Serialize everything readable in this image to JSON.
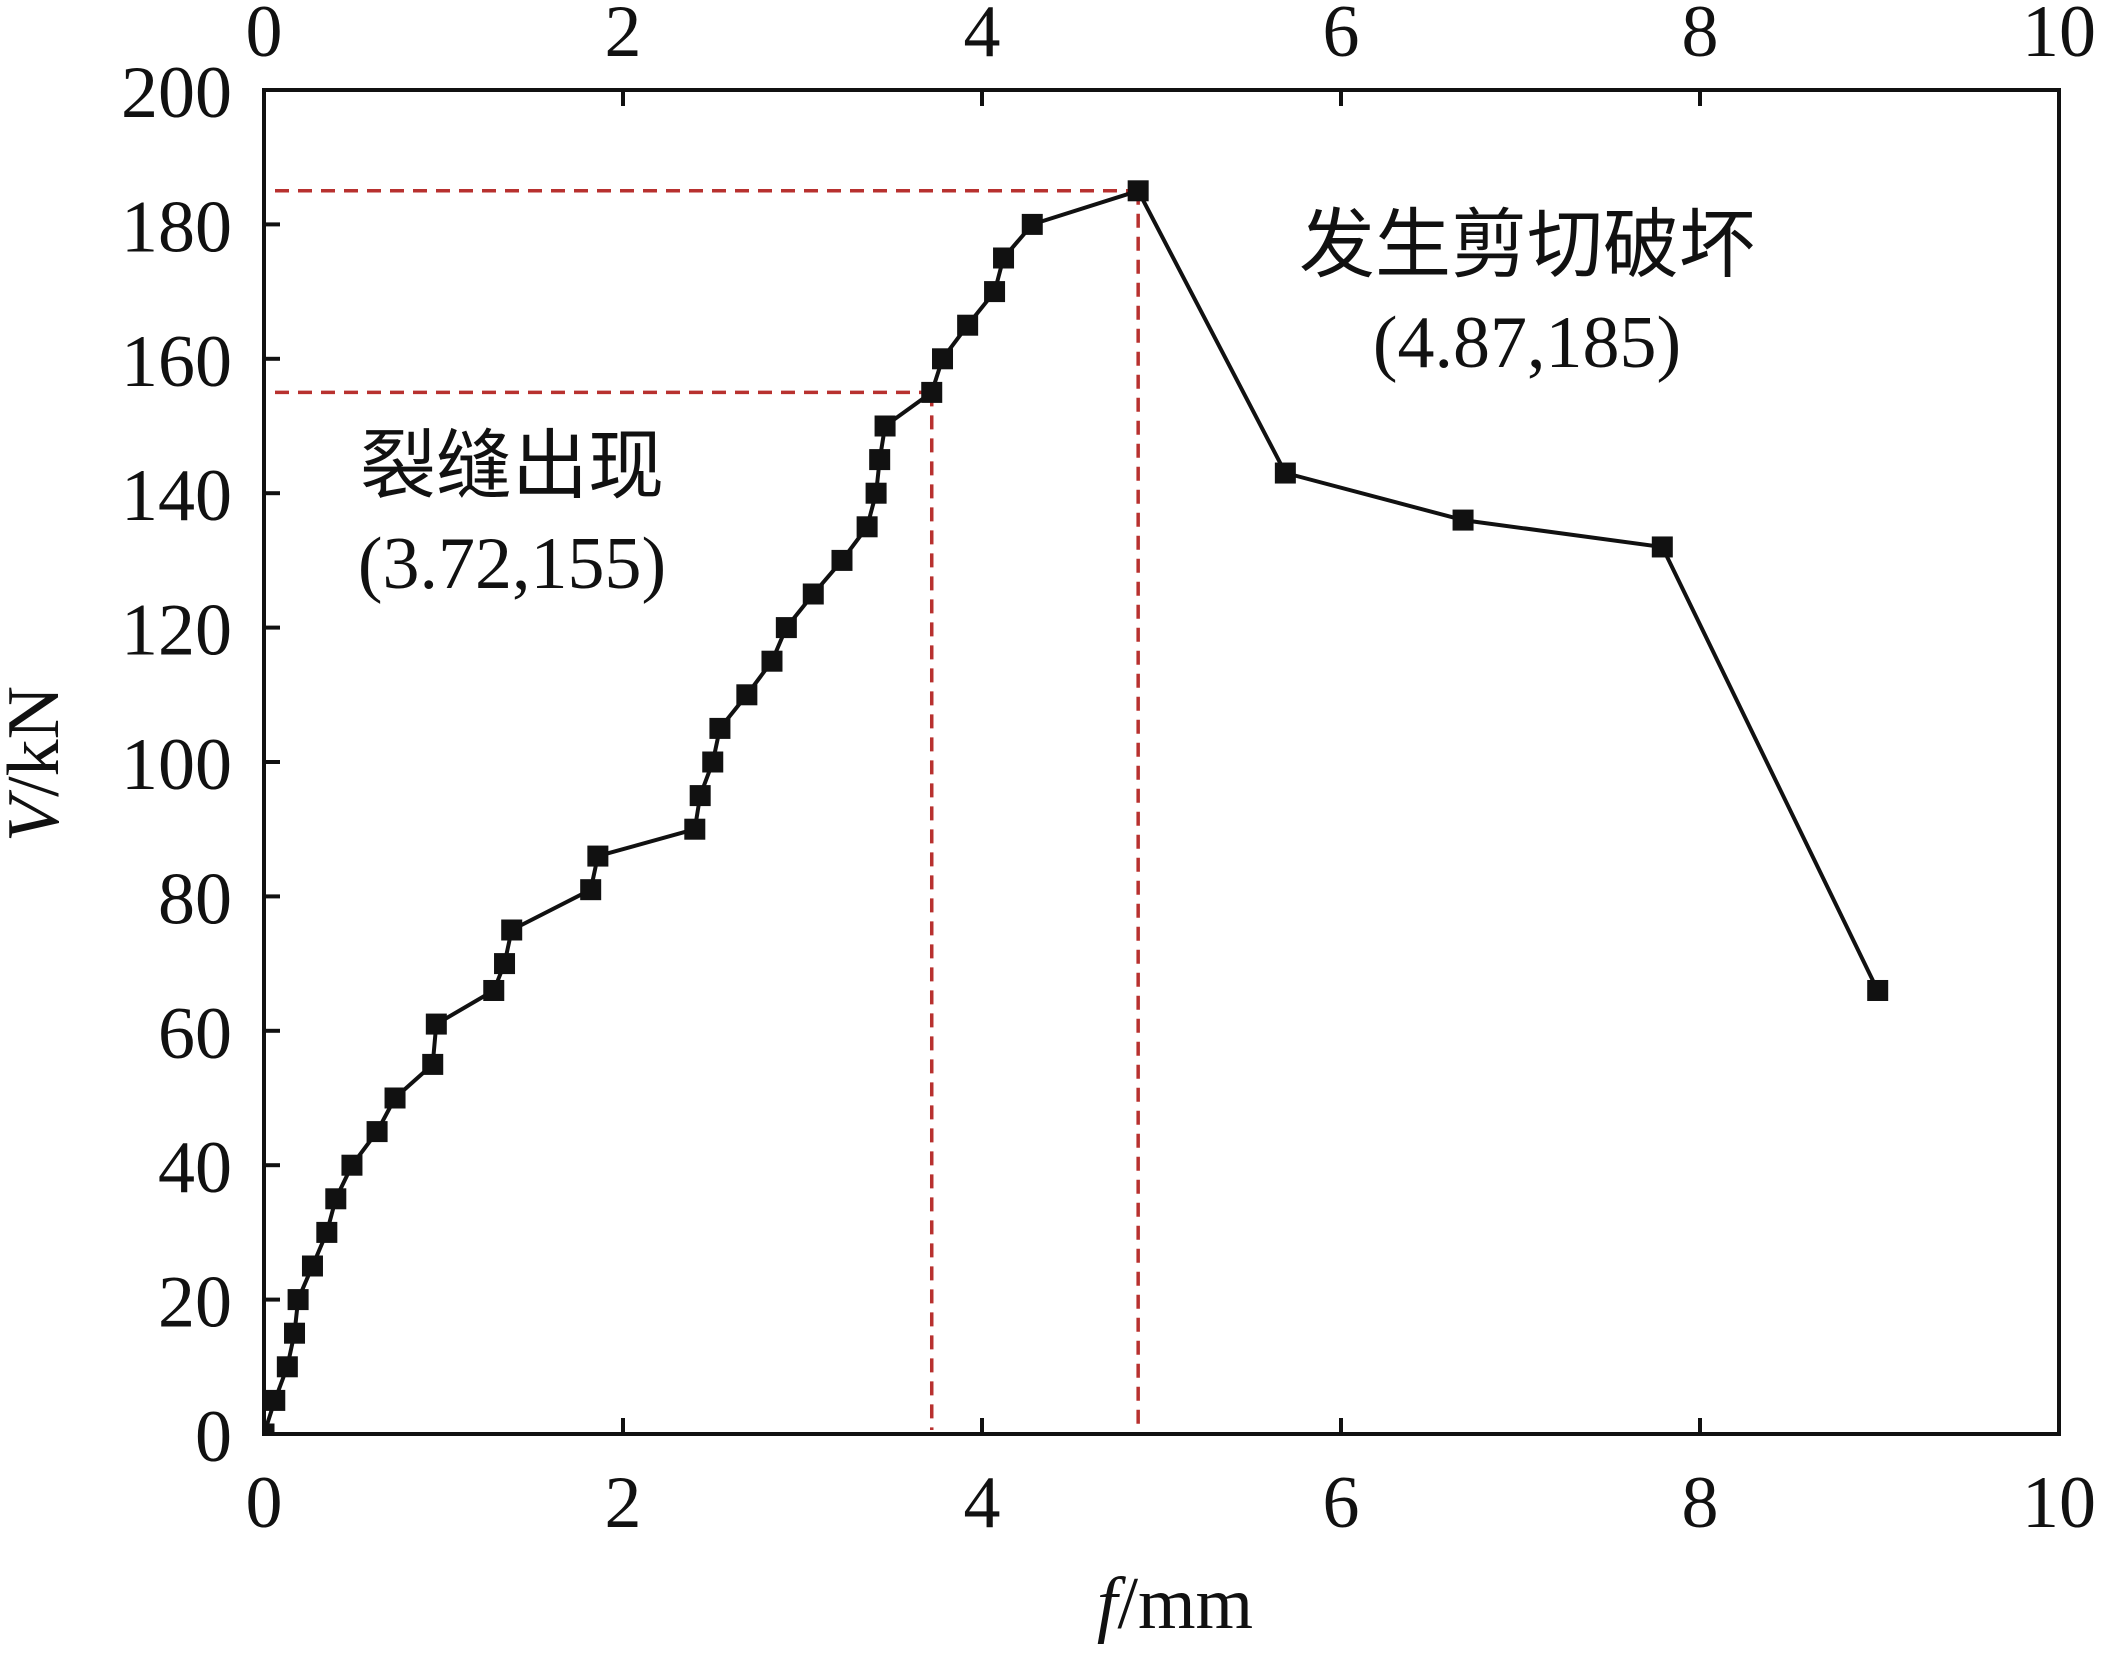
{
  "chart_data": {
    "type": "line",
    "xlim": [
      0,
      10
    ],
    "ylim": [
      0,
      200
    ],
    "xticks": [
      0,
      2,
      4,
      6,
      8,
      10
    ],
    "yticks": [
      0,
      20,
      40,
      60,
      80,
      100,
      120,
      140,
      160,
      180,
      200
    ],
    "top_axis": true,
    "xlabel": "f/mm",
    "ylabel": "V/kN",
    "grid": false,
    "series": [
      {
        "x": [
          0,
          0.06,
          0.13,
          0.17,
          0.19,
          0.27,
          0.35,
          0.4,
          0.49,
          0.63,
          0.73,
          0.94,
          0.96,
          1.28,
          1.34,
          1.38,
          1.82,
          1.86,
          2.4,
          2.43,
          2.5,
          2.54,
          2.69,
          2.83,
          2.91,
          3.06,
          3.22,
          3.36,
          3.41,
          3.43,
          3.46,
          3.72,
          3.78,
          3.92,
          4.07,
          4.12,
          4.28,
          4.87,
          5.69,
          6.68,
          7.79,
          8.99
        ],
        "y": [
          0,
          5,
          10,
          15,
          20,
          25,
          30,
          35,
          40,
          45,
          50,
          55,
          61,
          66,
          70,
          75,
          81,
          86,
          90,
          95,
          100,
          105,
          110,
          115,
          120,
          125,
          130,
          135,
          140,
          145,
          150,
          155,
          160,
          165,
          170,
          175,
          180,
          185,
          143,
          136,
          132,
          66
        ]
      }
    ],
    "annotations": [
      {
        "text": "发生剪切破坏",
        "coords": "(4.87,185)",
        "x": 4.87,
        "y": 185
      },
      {
        "text": "裂缝出现",
        "coords": "(3.72,155)",
        "x": 3.72,
        "y": 155
      }
    ],
    "colors": {
      "series": "#111111",
      "guide": "#b8312f"
    }
  }
}
